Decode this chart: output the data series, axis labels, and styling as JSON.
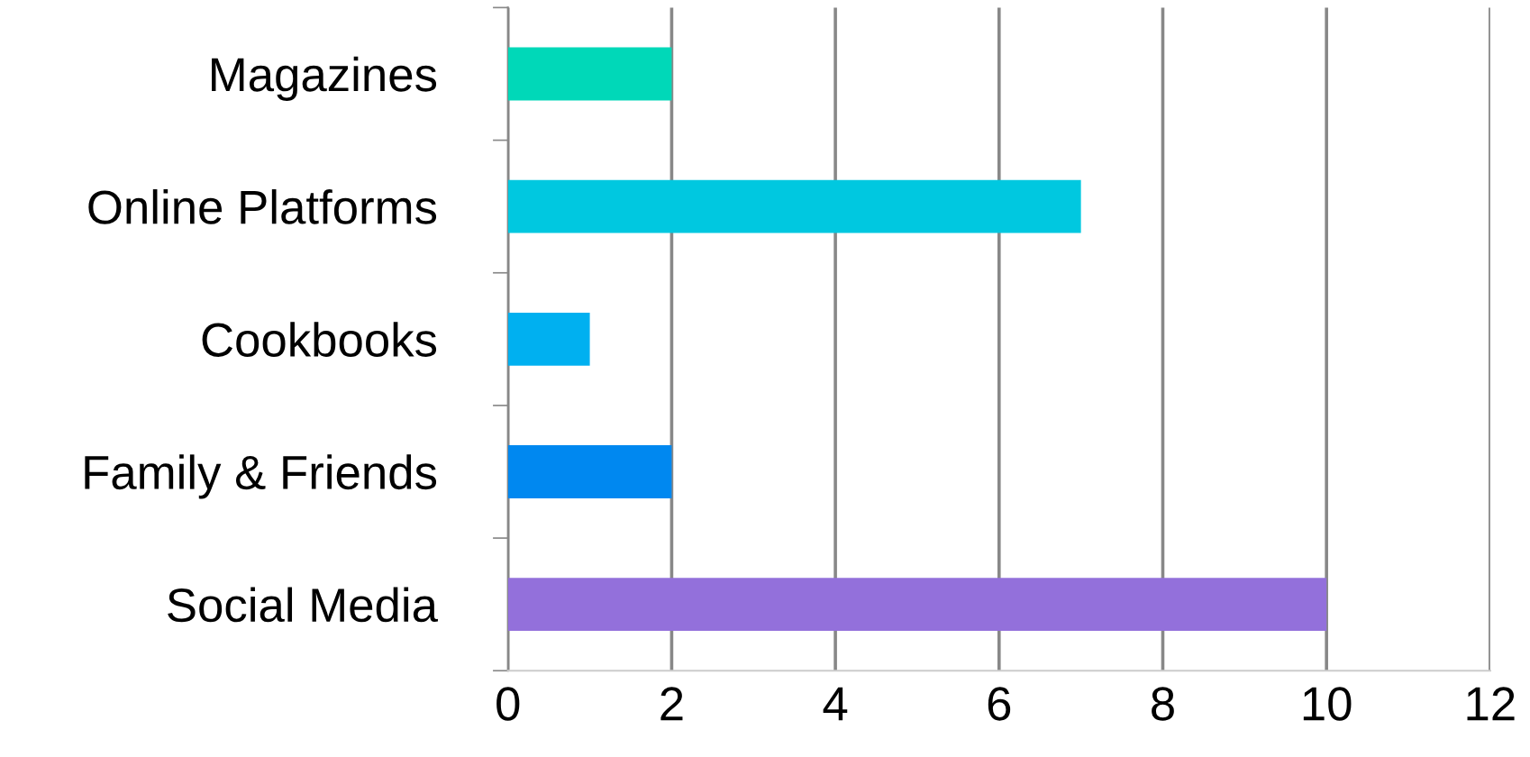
{
  "chart_data": {
    "type": "bar",
    "orientation": "horizontal",
    "categories": [
      "Magazines",
      "Online Platforms",
      "Cookbooks",
      "Family & Friends",
      "Social Media"
    ],
    "values": [
      2,
      7,
      1,
      2,
      10
    ],
    "colors": [
      "#00d8b8",
      "#00c8e0",
      "#00b0f0",
      "#0088f0",
      "#9370db"
    ],
    "xlim": [
      0,
      12
    ],
    "xticks": [
      0,
      2,
      4,
      6,
      8,
      10,
      12
    ],
    "grid": "x",
    "legend": false
  }
}
